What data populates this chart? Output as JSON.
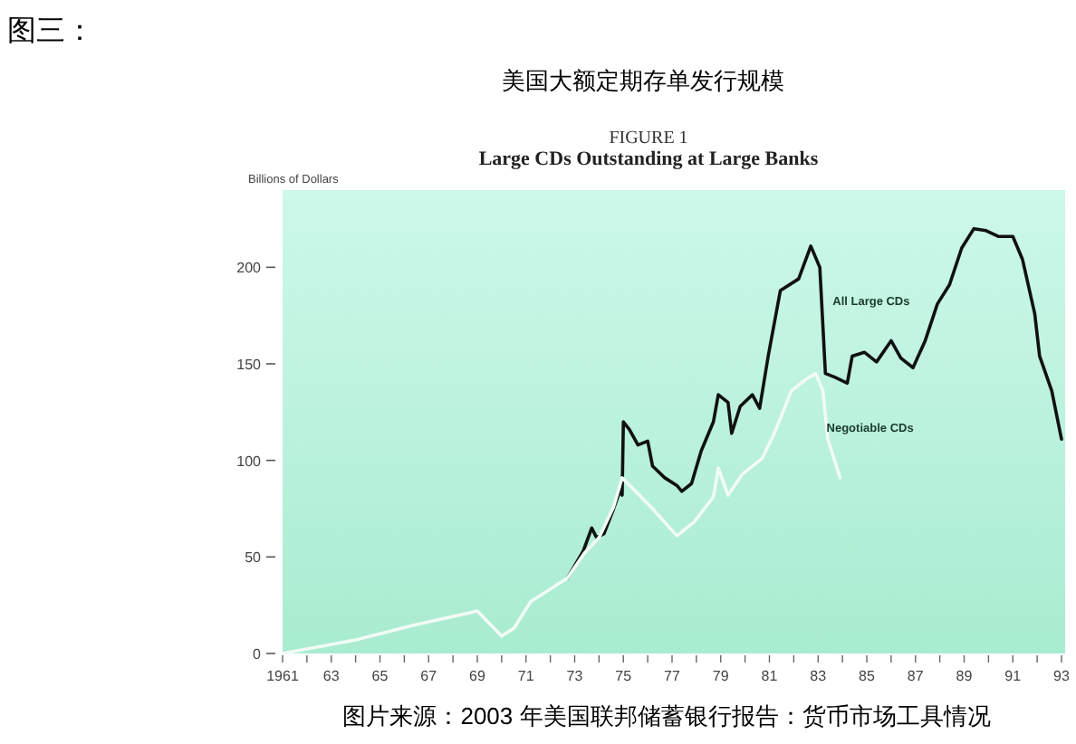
{
  "chart_data": {
    "type": "line",
    "title": "美国大额定期存单发行规模",
    "annotations": [
      "图三：",
      "FIGURE 1",
      "Large CDs Outstanding at Large Banks",
      "图片来源：2003 年美国联邦储蓄银行报告：货币市场工具情况"
    ],
    "ylabel": "Billions of Dollars",
    "series": [
      {
        "name": "All Large CDs",
        "color": "#111111",
        "x": [
          1972.7,
          1973.35,
          1973.7,
          1973.9,
          1974.2,
          1974.6,
          1974.85,
          1974.95,
          1975.0,
          1975.25,
          1975.6,
          1976.0,
          1976.2,
          1976.7,
          1977.2,
          1977.4,
          1977.8,
          1978.2,
          1978.7,
          1978.9,
          1979.3,
          1979.45,
          1979.8,
          1980.3,
          1980.6,
          1980.95,
          1981.45,
          1982.2,
          1982.7,
          1983.07,
          1983.3,
          1983.7,
          1984.2,
          1984.4,
          1984.9,
          1985.4,
          1986.0,
          1986.4,
          1986.9,
          1987.4,
          1987.9,
          1988.4,
          1988.9,
          1989.4,
          1989.9,
          1990.4,
          1991.0,
          1991.4,
          1991.9,
          1992.1,
          1992.6,
          1993.0
        ],
        "values": [
          39,
          53,
          65,
          60,
          62,
          75,
          84,
          82,
          120,
          116,
          108,
          110,
          97,
          91,
          87,
          84,
          88,
          105,
          120,
          134,
          130,
          114,
          128,
          134,
          127,
          154,
          188,
          194,
          211,
          200,
          145,
          143,
          140,
          154,
          156,
          151,
          162,
          153,
          148,
          162,
          181,
          191,
          210,
          220,
          219,
          216,
          216,
          204,
          176,
          154,
          136,
          111
        ]
      },
      {
        "name": "Negotiable CDs",
        "color": "#f2fbf6",
        "x": [
          1961,
          1964,
          1966.5,
          1969,
          1970,
          1970.5,
          1971.2,
          1972.7,
          1973.4,
          1974.0,
          1974.6,
          1974.95,
          1975.5,
          1976.2,
          1976.7,
          1977.2,
          1977.9,
          1978.7,
          1978.9,
          1979.3,
          1979.9,
          1980.7,
          1981.2,
          1981.9,
          1982.5,
          1982.9,
          1983.2,
          1983.4,
          1983.9
        ],
        "values": [
          0,
          7,
          15,
          22,
          9,
          13,
          27,
          39,
          52,
          60,
          76,
          91,
          84,
          75,
          68,
          61,
          68,
          81,
          96,
          82,
          93,
          101,
          114,
          136,
          142,
          145,
          136,
          111,
          91
        ]
      }
    ],
    "xlim": [
      1961,
      1993
    ],
    "xticks": [
      1961,
      {
        "value": 1962,
        "label": null
      },
      {
        "value": 1963,
        "label": "63"
      },
      {
        "value": 1964,
        "label": null
      },
      {
        "value": 1965,
        "label": "65"
      },
      {
        "value": 1966,
        "label": null
      },
      {
        "value": 1967,
        "label": "67"
      },
      {
        "value": 1968,
        "label": null
      },
      {
        "value": 1969,
        "label": "69"
      },
      {
        "value": 1970,
        "label": null
      },
      {
        "value": 1971,
        "label": "71"
      },
      {
        "value": 1972,
        "label": null
      },
      {
        "value": 1973,
        "label": "73"
      },
      {
        "value": 1974,
        "label": null
      },
      {
        "value": 1975,
        "label": "75"
      },
      {
        "value": 1976,
        "label": null
      },
      {
        "value": 1977,
        "label": "77"
      },
      {
        "value": 1978,
        "label": null
      },
      {
        "value": 1979,
        "label": "79"
      },
      {
        "value": 1980,
        "label": null
      },
      {
        "value": 1981,
        "label": "81"
      },
      {
        "value": 1982,
        "label": null
      },
      {
        "value": 1983,
        "label": "83"
      },
      {
        "value": 1984,
        "label": null
      },
      {
        "value": 1985,
        "label": "85"
      },
      {
        "value": 1986,
        "label": null
      },
      {
        "value": 1987,
        "label": "87"
      },
      {
        "value": 1988,
        "label": null
      },
      {
        "value": 1989,
        "label": "89"
      },
      {
        "value": 1990,
        "label": null
      },
      {
        "value": 1991,
        "label": "91"
      },
      {
        "value": 1992,
        "label": null
      },
      {
        "value": 1993,
        "label": "93"
      }
    ],
    "ylim": [
      0,
      240
    ],
    "yticks": [
      0,
      50,
      100,
      150,
      200
    ],
    "grid": false,
    "legend": false
  }
}
